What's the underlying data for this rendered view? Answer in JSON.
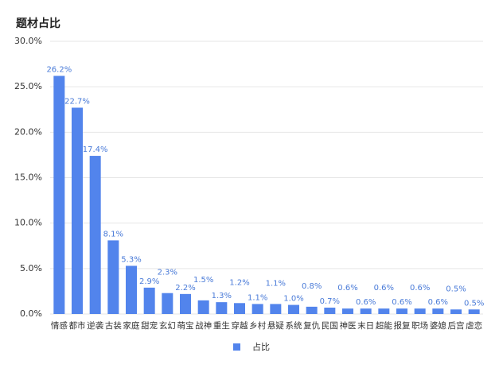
{
  "chart_data": {
    "type": "bar",
    "title": "题材占比",
    "categories": [
      "情感",
      "都市",
      "逆袭",
      "古装",
      "家庭",
      "甜宠",
      "玄幻",
      "萌宝",
      "战神",
      "重生",
      "穿越",
      "乡村",
      "悬疑",
      "系统",
      "复仇",
      "民国",
      "神医",
      "末日",
      "超能",
      "报复",
      "职场",
      "婆媳",
      "后宫",
      "虐恋"
    ],
    "series": [
      {
        "name": "占比",
        "color": "#5284ec",
        "values": [
          26.2,
          22.7,
          17.4,
          8.1,
          5.3,
          2.9,
          2.3,
          2.2,
          1.5,
          1.3,
          1.2,
          1.1,
          1.1,
          1.0,
          0.8,
          0.7,
          0.6,
          0.6,
          0.6,
          0.6,
          0.6,
          0.6,
          0.5,
          0.5
        ],
        "value_labels": [
          "26.2%",
          "22.7%",
          "17.4%",
          "8.1%",
          "5.3%",
          "2.9%",
          "2.3%",
          "2.2%",
          "1.5%",
          "1.3%",
          "1.2%",
          "1.1%",
          "1.1%",
          "1.0%",
          "0.8%",
          "0.7%",
          "0.6%",
          "0.6%",
          "0.6%",
          "0.6%",
          "0.6%",
          "0.6%",
          "0.5%",
          "0.5%"
        ]
      }
    ],
    "ylim": [
      0,
      30
    ],
    "yticks": [
      {
        "value": 0,
        "label": "0.0%"
      },
      {
        "value": 5,
        "label": "5.0%"
      },
      {
        "value": 10,
        "label": "10.0%"
      },
      {
        "value": 15,
        "label": "15.0%"
      },
      {
        "value": 20,
        "label": "20.0%"
      },
      {
        "value": 25,
        "label": "25.0%"
      },
      {
        "value": 30,
        "label": "30.0%"
      }
    ],
    "grid": true,
    "legend": "bottom"
  }
}
